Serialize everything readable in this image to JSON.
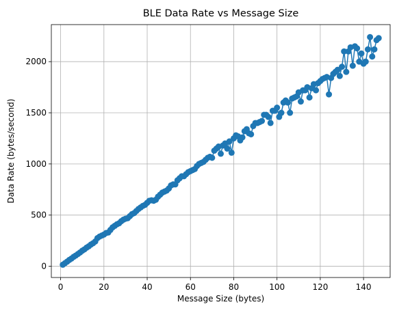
{
  "chart_data": {
    "type": "line",
    "title": "BLE Data Rate vs Message Size",
    "xlabel": "Message Size (bytes)",
    "ylabel": "Data Rate (bytes/second)",
    "xlim": [
      -4.3,
      152.3
    ],
    "ylim": [
      -110,
      2362
    ],
    "xticks": [
      0,
      20,
      40,
      60,
      80,
      100,
      120,
      140
    ],
    "yticks": [
      0,
      500,
      1000,
      1500,
      2000
    ],
    "grid": true,
    "legend": "none",
    "colors": {
      "series": "#1f77b4",
      "grid": "#b0b0b0"
    },
    "marker": "circle",
    "series": [
      {
        "x": [
          1,
          2,
          3,
          4,
          5,
          6,
          7,
          8,
          9,
          10,
          11,
          12,
          13,
          14,
          15,
          16,
          17,
          18,
          19,
          20,
          21,
          22,
          23,
          24,
          25,
          26,
          27,
          28,
          29,
          30,
          31,
          32,
          33,
          34,
          35,
          36,
          37,
          38,
          39,
          40,
          41,
          42,
          43,
          44,
          45,
          46,
          47,
          48,
          49,
          50,
          51,
          52,
          53,
          54,
          55,
          56,
          57,
          58,
          59,
          60,
          61,
          62,
          63,
          64,
          65,
          66,
          67,
          68,
          69,
          70,
          71,
          72,
          73,
          74,
          75,
          76,
          77,
          78,
          79,
          80,
          81,
          82,
          83,
          84,
          85,
          86,
          87,
          88,
          89,
          90,
          91,
          92,
          93,
          94,
          95,
          96,
          97,
          98,
          99,
          100,
          101,
          102,
          103,
          104,
          105,
          106,
          107,
          108,
          109,
          110,
          111,
          112,
          113,
          114,
          115,
          116,
          117,
          118,
          119,
          120,
          121,
          122,
          123,
          124,
          125,
          126,
          127,
          128,
          129,
          130,
          131,
          132,
          133,
          134,
          135,
          136,
          137,
          138,
          139,
          140,
          141,
          142,
          143,
          144,
          145,
          146,
          147
        ],
        "y": [
          15,
          30,
          45,
          62,
          75,
          92,
          105,
          120,
          135,
          152,
          165,
          182,
          195,
          212,
          225,
          242,
          275,
          290,
          300,
          310,
          325,
          330,
          355,
          380,
          395,
          410,
          420,
          440,
          455,
          465,
          470,
          490,
          510,
          520,
          540,
          560,
          575,
          590,
          600,
          620,
          640,
          645,
          640,
          650,
          680,
          700,
          720,
          730,
          740,
          760,
          790,
          800,
          800,
          840,
          860,
          880,
          880,
          900,
          920,
          930,
          940,
          950,
          980,
          1000,
          1010,
          1020,
          1040,
          1060,
          1070,
          1060,
          1130,
          1150,
          1170,
          1100,
          1180,
          1200,
          1150,
          1220,
          1110,
          1250,
          1280,
          1270,
          1230,
          1260,
          1320,
          1340,
          1300,
          1290,
          1370,
          1400,
          1400,
          1410,
          1420,
          1480,
          1480,
          1460,
          1400,
          1520,
          1520,
          1550,
          1460,
          1500,
          1600,
          1620,
          1600,
          1500,
          1640,
          1650,
          1660,
          1700,
          1610,
          1720,
          1720,
          1750,
          1650,
          1740,
          1780,
          1720,
          1790,
          1810,
          1830,
          1840,
          1850,
          1680,
          1840,
          1880,
          1900,
          1920,
          1860,
          1950,
          2100,
          1900,
          2100,
          2140,
          1960,
          2150,
          2130,
          2000,
          2080,
          1980,
          2000,
          2120,
          2240,
          2050,
          2120,
          2210,
          2230
        ]
      }
    ]
  }
}
